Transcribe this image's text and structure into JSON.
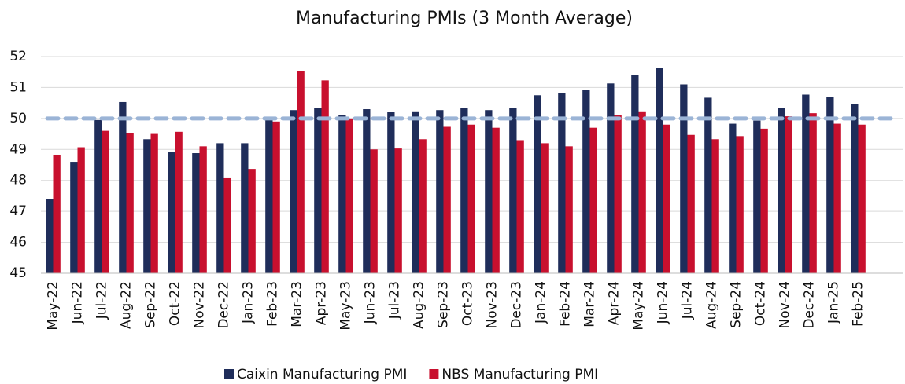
{
  "chart_data": {
    "type": "bar",
    "title": "Manufacturing PMIs (3 Month Average)",
    "categories": [
      "May-22",
      "Jun-22",
      "Jul-22",
      "Aug-22",
      "Sep-22",
      "Oct-22",
      "Nov-22",
      "Dec-22",
      "Jan-23",
      "Feb-23",
      "Mar-23",
      "Apr-23",
      "May-23",
      "Jun-23",
      "Jul-23",
      "Aug-23",
      "Sep-23",
      "Oct-23",
      "Nov-23",
      "Dec-23",
      "Jan-24",
      "Feb-24",
      "Mar-24",
      "Apr-24",
      "May-24",
      "Jun-24",
      "Jul-24",
      "Aug-24",
      "Sep-24",
      "Oct-24",
      "Nov-24",
      "Dec-24",
      "Jan-25",
      "Feb-25"
    ],
    "series": [
      {
        "name": "Caixin Manufacturing PMI",
        "color": "#1f2d5a",
        "values": [
          47.4,
          48.6,
          49.95,
          50.53,
          49.33,
          48.93,
          48.88,
          49.2,
          49.2,
          49.95,
          50.27,
          50.35,
          50.1,
          50.3,
          50.2,
          50.23,
          50.27,
          50.35,
          50.27,
          50.33,
          50.75,
          50.83,
          50.93,
          51.13,
          51.4,
          51.63,
          51.1,
          50.67,
          49.83,
          49.93,
          50.35,
          50.77,
          50.7,
          50.47
        ]
      },
      {
        "name": "NBS Manufacturing PMI",
        "color": "#c8102e",
        "values": [
          48.83,
          49.07,
          49.6,
          49.53,
          49.5,
          49.57,
          49.1,
          48.07,
          48.37,
          49.9,
          51.53,
          51.23,
          50.0,
          49.0,
          49.03,
          49.33,
          49.73,
          49.8,
          49.7,
          49.3,
          49.2,
          49.1,
          49.7,
          50.1,
          50.23,
          49.8,
          49.47,
          49.33,
          49.43,
          49.67,
          50.07,
          50.17,
          49.83,
          49.8
        ]
      }
    ],
    "ylim": [
      45,
      52
    ],
    "yticks": [
      45,
      46,
      47,
      48,
      49,
      50,
      51,
      52
    ],
    "grid": true,
    "reference_line": {
      "value": 50,
      "color": "#9bb4d6"
    },
    "legend": "bottom"
  }
}
